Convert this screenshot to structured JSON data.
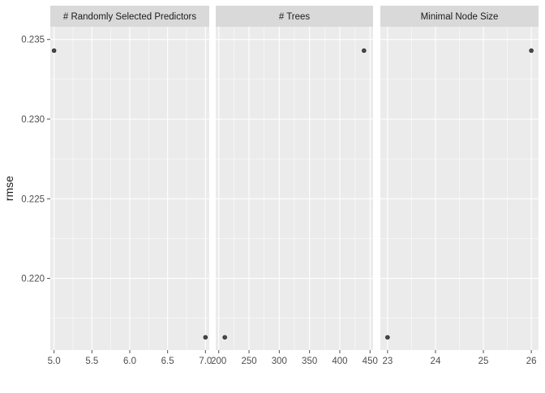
{
  "chart_data": {
    "type": "scatter",
    "ylabel": "rmse",
    "ylim": [
      0.2155,
      0.2358
    ],
    "yticks": [
      0.22,
      0.225,
      0.23,
      0.235
    ],
    "ytick_labels": [
      "0.220",
      "0.225",
      "0.230",
      "0.235"
    ],
    "grid": true,
    "style": {
      "panel_bg": "#ebebeb",
      "strip_bg": "#d9d9d9",
      "grid_major": "#ffffff",
      "point_fill": "#4d4d4d",
      "point_stroke": "#000000",
      "text_color": "#1a1a1a",
      "tick_color": "#4d4d4d"
    },
    "facets": [
      {
        "title": "# Randomly Selected Predictors",
        "xlim": [
          4.95,
          7.05
        ],
        "xticks": [
          5.0,
          5.5,
          6.0,
          6.5,
          7.0
        ],
        "xtick_labels": [
          "5.0",
          "5.5",
          "6.0",
          "6.5",
          "7.0"
        ],
        "points": [
          {
            "x": 5.0,
            "y": 0.2343
          },
          {
            "x": 7.0,
            "y": 0.2163
          }
        ]
      },
      {
        "title": "# Trees",
        "xlim": [
          195,
          455
        ],
        "xticks": [
          200,
          250,
          300,
          350,
          400,
          450
        ],
        "xtick_labels": [
          "200",
          "250",
          "300",
          "350",
          "400",
          "450"
        ],
        "points": [
          {
            "x": 210,
            "y": 0.2163
          },
          {
            "x": 440,
            "y": 0.2343
          }
        ]
      },
      {
        "title": "Minimal Node Size",
        "xlim": [
          22.85,
          26.15
        ],
        "xticks": [
          23,
          24,
          25,
          26
        ],
        "xtick_labels": [
          "23",
          "24",
          "25",
          "26"
        ],
        "points": [
          {
            "x": 23,
            "y": 0.2163
          },
          {
            "x": 26,
            "y": 0.2343
          }
        ]
      }
    ]
  }
}
